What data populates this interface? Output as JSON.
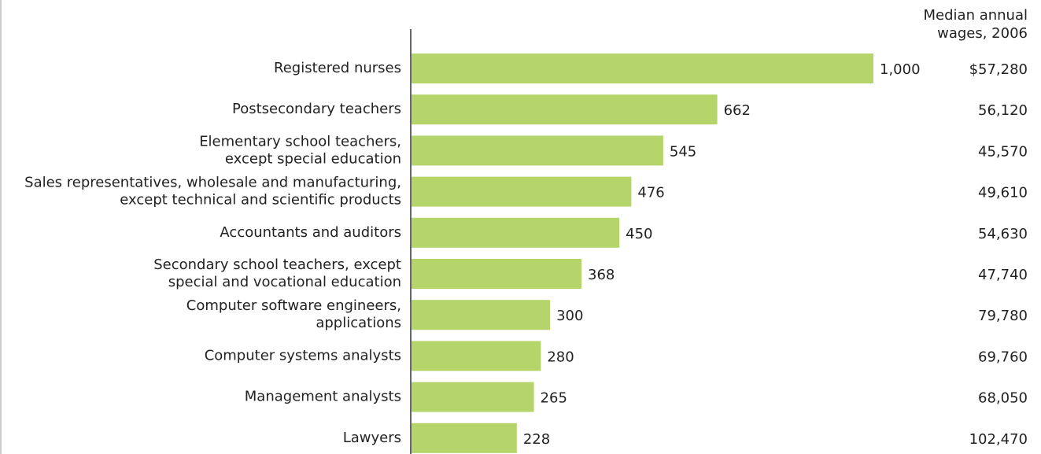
{
  "chart_data": {
    "type": "hbar",
    "categories": [
      [
        "Registered nurses"
      ],
      [
        "Postsecondary teachers"
      ],
      [
        "Elementary school teachers,",
        "except special education"
      ],
      [
        "Sales representatives, wholesale and manufacturing,",
        "except technical and scientific products"
      ],
      [
        "Accountants and auditors"
      ],
      [
        "Secondary school teachers, except",
        "special and vocational education"
      ],
      [
        "Computer software engineers,",
        "applications"
      ],
      [
        "Computer systems analysts"
      ],
      [
        "Management analysts"
      ],
      [
        "Lawyers"
      ]
    ],
    "values": [
      1000,
      662,
      545,
      476,
      450,
      368,
      300,
      280,
      265,
      228
    ],
    "value_labels": [
      "1,000",
      "662",
      "545",
      "476",
      "450",
      "368",
      "300",
      "280",
      "265",
      "228"
    ],
    "color": "#b5d56a",
    "wage_title": [
      "Median annual",
      "wages, 2006"
    ],
    "wage_labels": [
      "$57,280",
      "56,120",
      "45,570",
      "49,610",
      "54,630",
      "47,740",
      "79,780",
      "69,760",
      "68,050",
      "102,470"
    ]
  }
}
